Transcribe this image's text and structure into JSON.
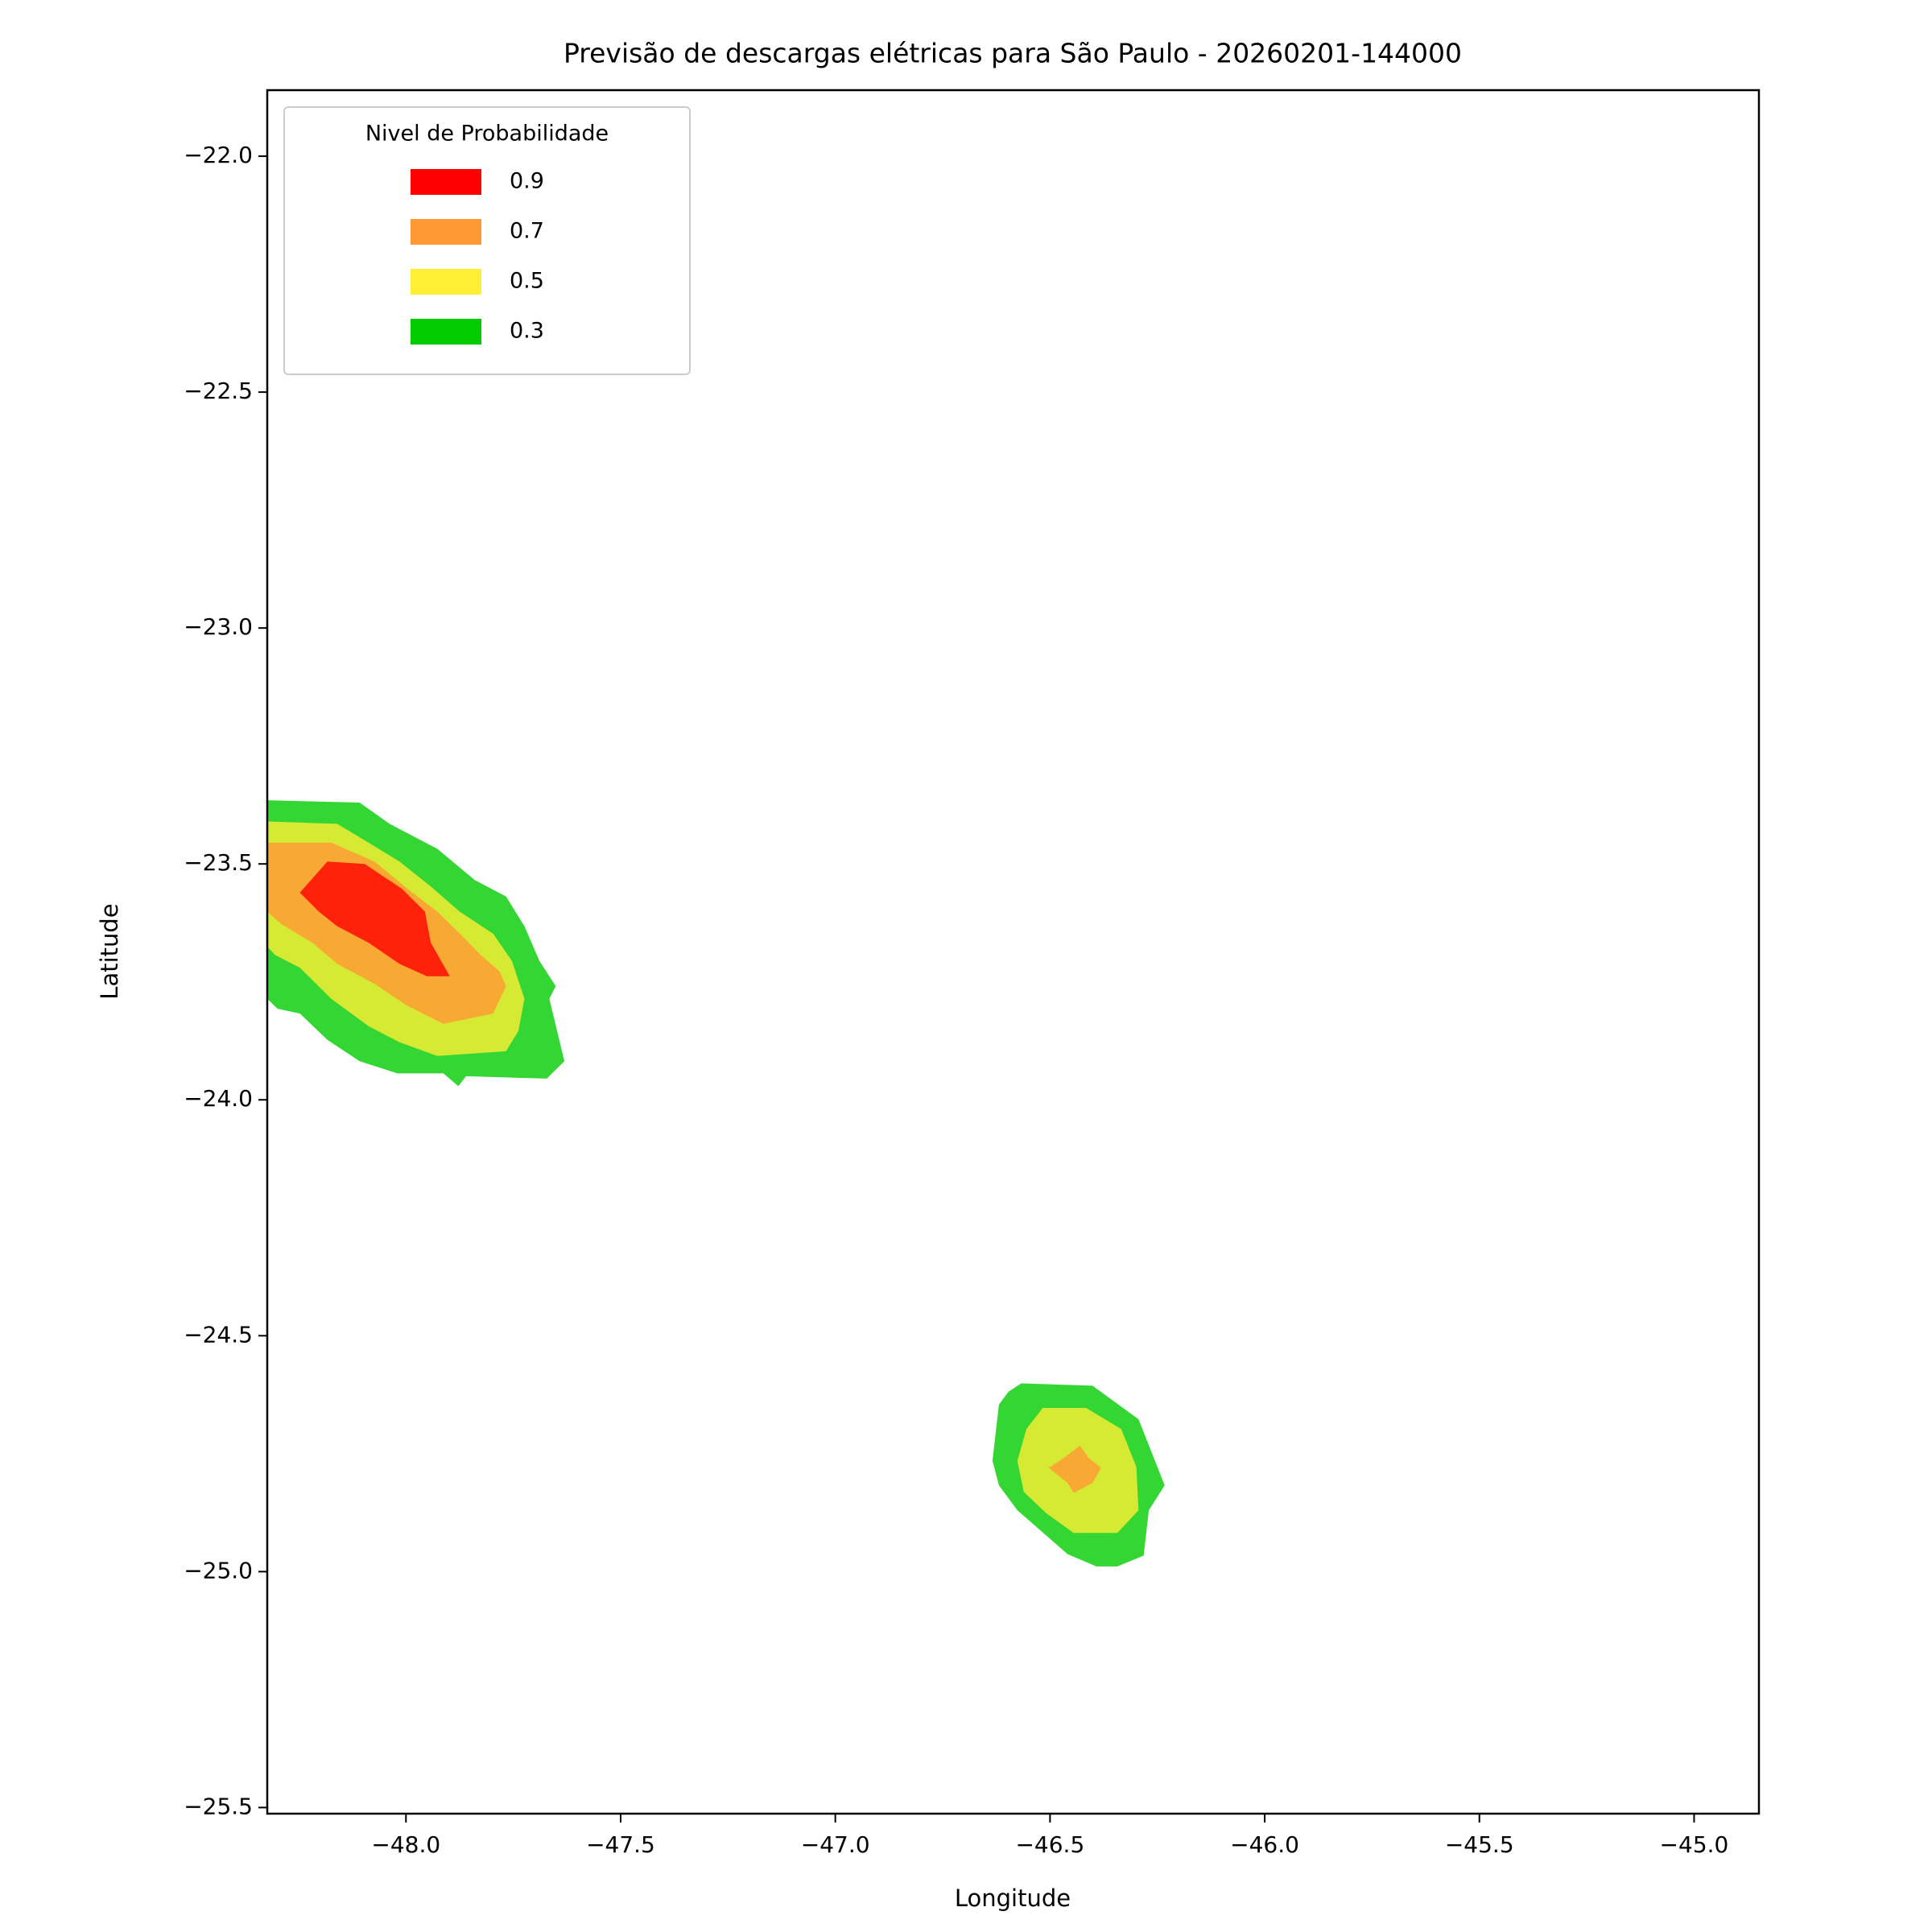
{
  "chart_data": {
    "type": "contour",
    "title": "Previsão de descargas elétricas para São Paulo - 20260201-144000",
    "x_label": "Longitude",
    "y_label": "Latitude",
    "xlim": [
      -48.323,
      -44.849
    ],
    "ylim": [
      -25.513,
      -21.86
    ],
    "xticks": [
      {
        "value": -48.0,
        "label": "−48.0"
      },
      {
        "value": -47.5,
        "label": "−47.5"
      },
      {
        "value": -47.0,
        "label": "−47.0"
      },
      {
        "value": -46.5,
        "label": "−46.5"
      },
      {
        "value": -46.0,
        "label": "−46.0"
      },
      {
        "value": -45.5,
        "label": "−45.5"
      },
      {
        "value": -45.0,
        "label": "−45.0"
      }
    ],
    "yticks": [
      {
        "value": -22.0,
        "label": "−22.0"
      },
      {
        "value": -22.5,
        "label": "−22.5"
      },
      {
        "value": -23.0,
        "label": "−23.0"
      },
      {
        "value": -23.5,
        "label": "−23.5"
      },
      {
        "value": -24.0,
        "label": "−24.0"
      },
      {
        "value": -24.5,
        "label": "−24.5"
      },
      {
        "value": -25.0,
        "label": "−25.0"
      },
      {
        "value": -25.5,
        "label": "−25.5"
      }
    ],
    "grid": false,
    "fill_opacity": 0.8,
    "legend_title": "Nivel de Probabilidade",
    "legend_position": "upper left",
    "series": [
      {
        "name": "0.9",
        "color": "#ff0000",
        "polygons": [
          {
            "x": [
              -48.183,
              -48.096,
              -48.009,
              -47.956,
              -47.942,
              -47.898,
              -47.951,
              -48.015,
              -48.087,
              -48.16,
              -48.203,
              -48.247
            ],
            "y": [
              -23.495,
              -23.5,
              -23.553,
              -23.601,
              -23.667,
              -23.738,
              -23.738,
              -23.712,
              -23.667,
              -23.632,
              -23.601,
              -23.561
            ]
          }
        ]
      },
      {
        "name": "0.7",
        "color": "#ff9933",
        "polygons": [
          {
            "x": [
              -48.323,
              -48.174,
              -48.073,
              -47.985,
              -47.927,
              -47.869,
              -47.826,
              -47.782,
              -47.767,
              -47.797,
              -47.913,
              -48.0,
              -48.073,
              -48.16,
              -48.218,
              -48.291,
              -48.323
            ],
            "y": [
              -23.455,
              -23.455,
              -23.495,
              -23.561,
              -23.601,
              -23.653,
              -23.693,
              -23.728,
              -23.759,
              -23.817,
              -23.839,
              -23.799,
              -23.754,
              -23.712,
              -23.667,
              -23.627,
              -23.601
            ]
          },
          {
            "x": [
              -46.43,
              -46.41,
              -46.381,
              -46.401,
              -46.445,
              -46.459,
              -46.503,
              -46.468
            ],
            "y": [
              -24.733,
              -24.759,
              -24.78,
              -24.812,
              -24.833,
              -24.812,
              -24.78,
              -24.759
            ]
          }
        ]
      },
      {
        "name": "0.5",
        "color": "#ffee33",
        "polygons": [
          {
            "x": [
              -48.323,
              -48.16,
              -48.087,
              -48.015,
              -47.942,
              -47.875,
              -47.797,
              -47.753,
              -47.724,
              -47.738,
              -47.767,
              -47.927,
              -48.015,
              -48.087,
              -48.174,
              -48.247,
              -48.305,
              -48.323
            ],
            "y": [
              -23.41,
              -23.415,
              -23.455,
              -23.495,
              -23.548,
              -23.601,
              -23.648,
              -23.706,
              -23.786,
              -23.854,
              -23.897,
              -23.907,
              -23.878,
              -23.844,
              -23.786,
              -23.72,
              -23.693,
              -23.675
            ]
          },
          {
            "x": [
              -46.517,
              -46.416,
              -46.334,
              -46.299,
              -46.294,
              -46.343,
              -46.445,
              -46.509,
              -46.561,
              -46.576,
              -46.555
            ],
            "y": [
              -24.653,
              -24.653,
              -24.698,
              -24.778,
              -24.87,
              -24.918,
              -24.918,
              -24.876,
              -24.831,
              -24.765,
              -24.698
            ]
          }
        ]
      },
      {
        "name": "0.3",
        "color": "#00cc00",
        "polygons": [
          {
            "x": [
              -48.323,
              -48.108,
              -48.038,
              -47.927,
              -47.84,
              -47.767,
              -47.724,
              -47.689,
              -47.651,
              -47.666,
              -47.631,
              -47.672,
              -47.86,
              -47.878,
              -47.913,
              -48.02,
              -48.108,
              -48.183,
              -48.247,
              -48.299,
              -48.323
            ],
            "y": [
              -23.365,
              -23.37,
              -23.415,
              -23.468,
              -23.534,
              -23.569,
              -23.632,
              -23.706,
              -23.759,
              -23.786,
              -23.918,
              -23.955,
              -23.95,
              -23.971,
              -23.944,
              -23.944,
              -23.918,
              -23.873,
              -23.817,
              -23.807,
              -23.786
            ]
          },
          {
            "x": [
              -46.567,
              -46.401,
              -46.294,
              -46.233,
              -46.27,
              -46.282,
              -46.343,
              -46.392,
              -46.459,
              -46.576,
              -46.619,
              -46.634,
              -46.619,
              -46.597
            ],
            "y": [
              -24.601,
              -24.606,
              -24.677,
              -24.817,
              -24.87,
              -24.966,
              -24.989,
              -24.989,
              -24.963,
              -24.87,
              -24.817,
              -24.765,
              -24.646,
              -24.619
            ]
          }
        ]
      }
    ]
  }
}
